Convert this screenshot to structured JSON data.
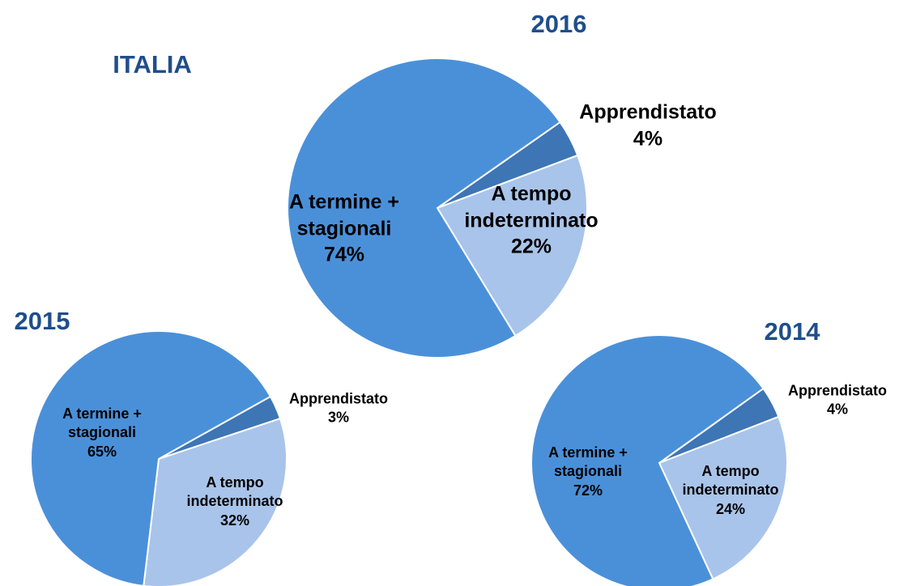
{
  "page_title": "ITALIA",
  "chart_data": [
    {
      "type": "pie",
      "title": "2016",
      "categories": [
        "Apprendistato",
        "A tempo indeterminato",
        "A termine + stagionali"
      ],
      "values": [
        4,
        22,
        74
      ],
      "value_labels": [
        "4%",
        "22%",
        "74%"
      ],
      "colors": [
        "#3e75b5",
        "#a9c4ea",
        "#4a90d9"
      ]
    },
    {
      "type": "pie",
      "title": "2015",
      "categories": [
        "Apprendistato",
        "A tempo indeterminato",
        "A termine + stagionali"
      ],
      "values": [
        3,
        32,
        65
      ],
      "value_labels": [
        "3%",
        "32%",
        "65%"
      ],
      "colors": [
        "#3e75b5",
        "#a9c4ea",
        "#4a90d9"
      ]
    },
    {
      "type": "pie",
      "title": "2014",
      "categories": [
        "Apprendistato",
        "A tempo indeterminato",
        "A termine + stagionali"
      ],
      "values": [
        4,
        24,
        72
      ],
      "value_labels": [
        "4%",
        "24%",
        "72%"
      ],
      "colors": [
        "#3e75b5",
        "#a9c4ea",
        "#4a90d9"
      ]
    }
  ]
}
